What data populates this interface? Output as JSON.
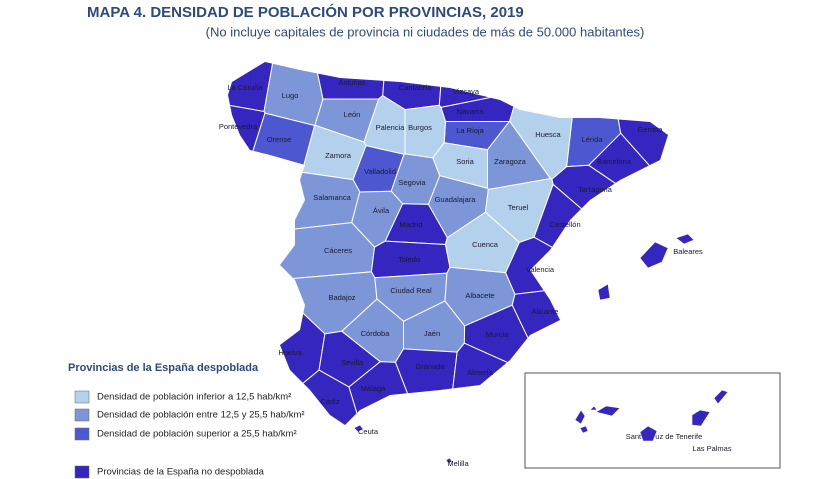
{
  "header": {
    "title": "MAPA 4.  DENSIDAD DE POBLACIÓN POR PROVINCIAS, 2019",
    "subtitle": "(No incluye capitales de provincia ni ciudades de más de 50.000 habitantes)"
  },
  "legend": {
    "title": "Provincias de la España despoblada",
    "items": [
      {
        "label": "Densidad de población inferior a 12,5 hab/km²",
        "color": "#b3d1ec"
      },
      {
        "label": "Densidad de población entre 12,5 y 25,5 hab/km²",
        "color": "#7d96d8"
      },
      {
        "label": "Densidad de población superior a 25,5 hab/km²",
        "color": "#4d58d0"
      },
      {
        "label": "Provincias de la España no despoblada",
        "color": "#3526bf"
      }
    ]
  },
  "provinces": [
    {
      "name": "La Coruña",
      "color": "#3526bf"
    },
    {
      "name": "Lugo",
      "color": "#7d96d8"
    },
    {
      "name": "Asturias",
      "color": "#3526bf"
    },
    {
      "name": "Cantabria",
      "color": "#3526bf"
    },
    {
      "name": "Vizcaya",
      "color": "#3526bf"
    },
    {
      "name": "Navarra",
      "color": "#3526bf"
    },
    {
      "name": "La Rioja",
      "color": "#4d58d0"
    },
    {
      "name": "Huesca",
      "color": "#b3d1ec"
    },
    {
      "name": "Lérida",
      "color": "#4d58d0"
    },
    {
      "name": "Gerona",
      "color": "#3526bf"
    },
    {
      "name": "Barcelona",
      "color": "#3526bf"
    },
    {
      "name": "Tarragona",
      "color": "#3526bf"
    },
    {
      "name": "Pontevedra",
      "color": "#3526bf"
    },
    {
      "name": "Orense",
      "color": "#4d58d0"
    },
    {
      "name": "León",
      "color": "#7d96d8"
    },
    {
      "name": "Palencia",
      "color": "#b3d1ec"
    },
    {
      "name": "Burgos",
      "color": "#b3d1ec"
    },
    {
      "name": "Zamora",
      "color": "#b3d1ec"
    },
    {
      "name": "Valladolid",
      "color": "#4d58d0"
    },
    {
      "name": "Soria",
      "color": "#b3d1ec"
    },
    {
      "name": "Zaragoza",
      "color": "#7d96d8"
    },
    {
      "name": "Segovia",
      "color": "#7d96d8"
    },
    {
      "name": "Salamanca",
      "color": "#7d96d8"
    },
    {
      "name": "Ávila",
      "color": "#7d96d8"
    },
    {
      "name": "Guadalajara",
      "color": "#7d96d8"
    },
    {
      "name": "Teruel",
      "color": "#b3d1ec"
    },
    {
      "name": "Castellón",
      "color": "#3526bf"
    },
    {
      "name": "Madrid",
      "color": "#3526bf"
    },
    {
      "name": "Cuenca",
      "color": "#b3d1ec"
    },
    {
      "name": "Cáceres",
      "color": "#7d96d8"
    },
    {
      "name": "Toledo",
      "color": "#3526bf"
    },
    {
      "name": "Valencia",
      "color": "#3526bf"
    },
    {
      "name": "Badajoz",
      "color": "#7d96d8"
    },
    {
      "name": "Ciudad Real",
      "color": "#7d96d8"
    },
    {
      "name": "Albacete",
      "color": "#7d96d8"
    },
    {
      "name": "Alicante",
      "color": "#3526bf"
    },
    {
      "name": "Córdoba",
      "color": "#7d96d8"
    },
    {
      "name": "Jaén",
      "color": "#7d96d8"
    },
    {
      "name": "Murcia",
      "color": "#3526bf"
    },
    {
      "name": "Huelva",
      "color": "#3526bf"
    },
    {
      "name": "Sevilla",
      "color": "#3526bf"
    },
    {
      "name": "Granada",
      "color": "#3526bf"
    },
    {
      "name": "Almería",
      "color": "#3526bf"
    },
    {
      "name": "Málaga",
      "color": "#3526bf"
    },
    {
      "name": "Cádiz",
      "color": "#3526bf"
    }
  ],
  "islands": [
    {
      "name": "Baleares",
      "color": "#3526bf"
    },
    {
      "name": "Ceuta",
      "color": "#3526bf"
    },
    {
      "name": "Melilla",
      "color": "#3526bf"
    },
    {
      "name": "Santa Cruz de Tenerife",
      "color": "#3526bf"
    },
    {
      "name": "Las Palmas",
      "color": "#3526bf"
    }
  ]
}
